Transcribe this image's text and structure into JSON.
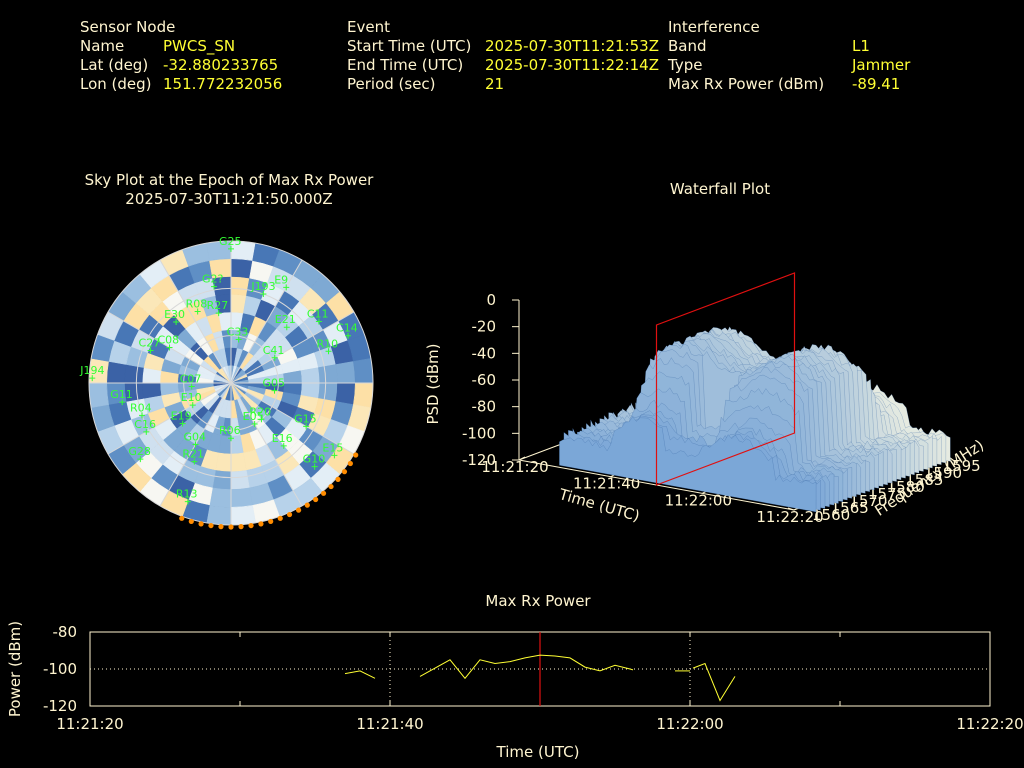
{
  "info": {
    "sensor": {
      "header": "Sensor Node",
      "name_label": "Name",
      "name_value": "PWCS_SN",
      "lat_label": "Lat (deg)",
      "lat_value": "-32.880233765",
      "lon_label": "Lon (deg)",
      "lon_value": "151.772232056"
    },
    "event": {
      "header": "Event",
      "start_label": "Start Time (UTC)",
      "start_value": "2025-07-30T11:21:53Z",
      "end_label": "End Time (UTC)",
      "end_value": "2025-07-30T11:22:14Z",
      "period_label": "Period (sec)",
      "period_value": "21"
    },
    "interference": {
      "header": "Interference",
      "band_label": "Band",
      "band_value": "L1",
      "type_label": "Type",
      "type_value": "Jammer",
      "power_label": "Max Rx Power (dBm)",
      "power_value": "-89.41"
    }
  },
  "chart_data": [
    {
      "type": "scatter",
      "title": "Sky Plot at the Epoch of Max Rx Power",
      "subtitle": "2025-07-30T11:21:50.000Z",
      "satellites": [
        {
          "name": "G25",
          "az": 0,
          "el": 5
        },
        {
          "name": "G2?",
          "az": 350,
          "el": 28
        },
        {
          "name": "E30",
          "az": 318,
          "el": 38
        },
        {
          "name": "R08",
          "az": 335,
          "el": 40
        },
        {
          "name": "R27",
          "az": 350,
          "el": 45
        },
        {
          "name": "J193",
          "az": 20,
          "el": 30
        },
        {
          "name": "E9",
          "az": 30,
          "el": 20
        },
        {
          "name": "E21",
          "az": 45,
          "el": 40
        },
        {
          "name": "C11",
          "az": 55,
          "el": 22
        },
        {
          "name": "C14",
          "az": 68,
          "el": 10
        },
        {
          "name": "R10",
          "az": 72,
          "el": 25
        },
        {
          "name": "C33",
          "az": 10,
          "el": 62
        },
        {
          "name": "C41",
          "az": 60,
          "el": 58
        },
        {
          "name": "G05",
          "az": 100,
          "el": 62
        },
        {
          "name": "J194",
          "az": 272,
          "el": 2
        },
        {
          "name": "G11",
          "az": 260,
          "el": 20
        },
        {
          "name": "R04",
          "az": 250,
          "el": 30
        },
        {
          "name": "C16",
          "az": 240,
          "el": 28
        },
        {
          "name": "C27",
          "az": 292,
          "el": 35
        },
        {
          "name": "C08",
          "az": 300,
          "el": 45
        },
        {
          "name": "C07",
          "az": 265,
          "el": 65
        },
        {
          "name": "E10",
          "az": 240,
          "el": 62
        },
        {
          "name": "E19",
          "az": 230,
          "el": 50
        },
        {
          "name": "G04",
          "az": 210,
          "el": 45
        },
        {
          "name": "R21",
          "az": 205,
          "el": 35
        },
        {
          "name": "G28",
          "az": 230,
          "el": 15
        },
        {
          "name": "R13",
          "az": 200,
          "el": 10
        },
        {
          "name": "R06",
          "az": 180,
          "el": 55
        },
        {
          "name": "E05",
          "az": 150,
          "el": 60
        },
        {
          "name": "G15",
          "az": 120,
          "el": 35
        },
        {
          "name": "R20",
          "az": 140,
          "el": 60
        },
        {
          "name": "E16",
          "az": 140,
          "el": 38
        },
        {
          "name": "G10",
          "az": 135,
          "el": 15
        },
        {
          "name": "E15",
          "az": 125,
          "el": 10
        }
      ]
    },
    {
      "type": "area",
      "title": "Waterfall Plot",
      "xlabel": "Time (UTC)",
      "ylabel": "Frequency (MHz)",
      "zlabel": "PSD (dBm)",
      "x_ticks": [
        "11:21:20",
        "11:21:40",
        "11:22:00",
        "11:22:20"
      ],
      "y_ticks": [
        "1560",
        "1565",
        "1570",
        "1575",
        "1580",
        "1585",
        "1590",
        "1595"
      ],
      "z_ticks": [
        "0",
        "-20",
        "-40",
        "-60",
        "-80",
        "-100",
        "-120"
      ],
      "xlim": [
        0,
        60
      ],
      "ylim": [
        1560,
        1597
      ],
      "zlim": [
        -120,
        0
      ]
    },
    {
      "type": "line",
      "title": "Max Rx Power",
      "xlabel": "Time (UTC)",
      "ylabel": "Power (dBm)",
      "x_ticks": [
        "11:21:20",
        "11:21:40",
        "11:22:00",
        "11:22:20"
      ],
      "y_ticks": [
        "-80",
        "-100",
        "-120"
      ],
      "xlim": [
        0,
        60
      ],
      "ylim": [
        -120,
        -80
      ],
      "marker_x": 30,
      "segments": [
        [
          [
            17,
            -102.5
          ],
          [
            18,
            -101
          ],
          [
            19,
            -105
          ]
        ],
        [
          [
            22,
            -104
          ],
          [
            24,
            -95
          ],
          [
            25,
            -105
          ],
          [
            26,
            -95
          ],
          [
            27,
            -97
          ],
          [
            28,
            -96
          ],
          [
            29,
            -94
          ],
          [
            30,
            -92.5
          ],
          [
            31,
            -93
          ],
          [
            32,
            -94
          ],
          [
            33,
            -99
          ],
          [
            34,
            -101
          ],
          [
            35,
            -98
          ],
          [
            36,
            -100
          ],
          [
            36.2,
            -100.5
          ]
        ],
        [
          [
            39,
            -101
          ],
          [
            40,
            -101
          ]
        ],
        [
          [
            40.2,
            -99.5
          ],
          [
            41,
            -97
          ],
          [
            42,
            -117
          ],
          [
            43,
            -104
          ]
        ]
      ]
    }
  ]
}
